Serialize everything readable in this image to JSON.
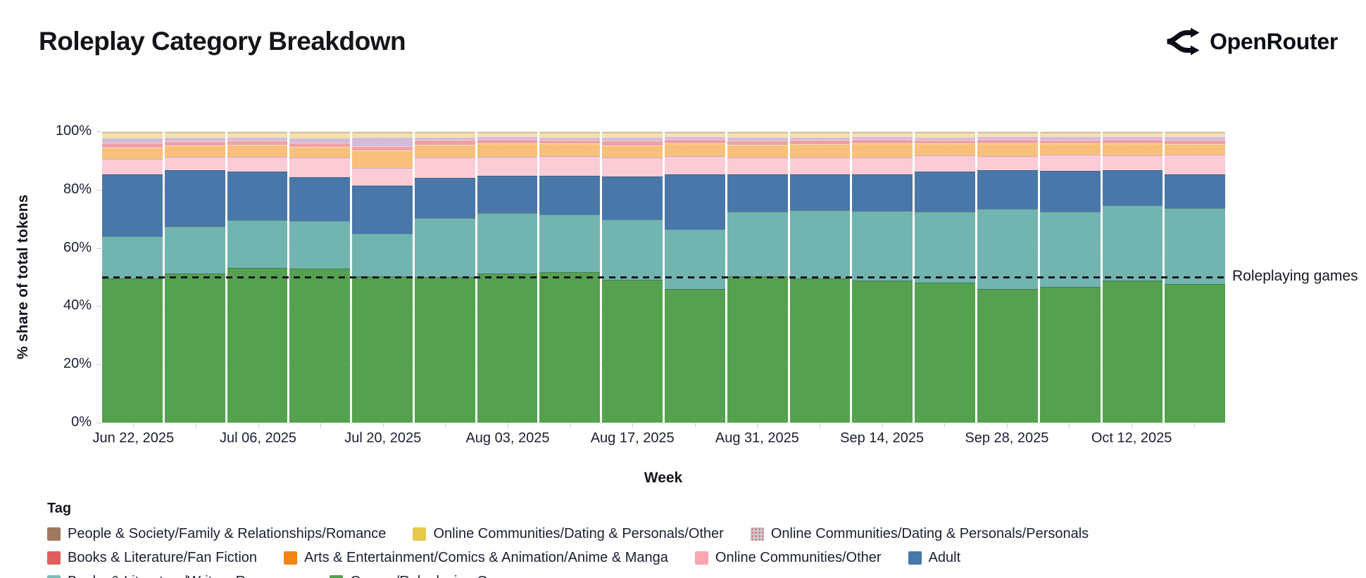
{
  "header": {
    "title": "Roleplay Category Breakdown",
    "brand": "OpenRouter"
  },
  "chart_data": {
    "type": "bar",
    "stacked": true,
    "stack_unit": "percent_share",
    "title": "Roleplay Category Breakdown",
    "xlabel": "Week",
    "ylabel": "% share of total tokens",
    "ylim": [
      0,
      100
    ],
    "ytick_values": [
      0,
      20,
      40,
      60,
      80,
      100
    ],
    "ytick_labels": [
      "0%",
      "20%",
      "40%",
      "60%",
      "80%",
      "100%"
    ],
    "grid": true,
    "legend_title": "Tag",
    "legend_position": "bottom-left",
    "annotation": {
      "y": 50,
      "label": "Roleplaying games",
      "line_style": "dashed",
      "color": "#15181e"
    },
    "weeks": [
      "Jun 22, 2025",
      "Jun 29, 2025",
      "Jul 06, 2025",
      "Jul 13, 2025",
      "Jul 20, 2025",
      "Jul 27, 2025",
      "Aug 03, 2025",
      "Aug 10, 2025",
      "Aug 17, 2025",
      "Aug 24, 2025",
      "Aug 31, 2025",
      "Sep 07, 2025",
      "Sep 14, 2025",
      "Sep 21, 2025",
      "Sep 28, 2025",
      "Oct 05, 2025",
      "Oct 12, 2025",
      "Oct 19, 2025"
    ],
    "x_tick_labels": [
      "Jun 22, 2025",
      "Jul 06, 2025",
      "Jul 20, 2025",
      "Aug 03, 2025",
      "Aug 17, 2025",
      "Aug 31, 2025",
      "Sep 14, 2025",
      "Sep 28, 2025",
      "Oct 12, 2025"
    ],
    "x_tick_every": 2,
    "series_stack_order": "bottom_to_top",
    "series": [
      {
        "name": "Games/Roleplaying Games",
        "fill": "#55a14f",
        "legend_color": "#4fa14c",
        "shade": "dark",
        "values": [
          50.4,
          52.0,
          54.0,
          53.9,
          51.1,
          50.8,
          52.2,
          52.5,
          49.9,
          46.6,
          51.1,
          50.4,
          49.6,
          48.9,
          46.6,
          47.3,
          49.6,
          48.5
        ]
      },
      {
        "name": "Books & Literature/Writers Resources",
        "fill": "#72b4b0",
        "legend_color": "#7cbcb6",
        "shade": "dark",
        "values": [
          14.6,
          16.5,
          16.5,
          16.4,
          14.7,
          20.6,
          20.8,
          20.1,
          21.0,
          20.8,
          22.4,
          23.6,
          24.2,
          24.6,
          27.9,
          26.2,
          26.3,
          26.2
        ]
      },
      {
        "name": "Adult",
        "fill": "#4a77a9",
        "legend_color": "#4a77a9",
        "shade": "dark",
        "values": [
          21.5,
          19.5,
          17.0,
          15.2,
          16.7,
          13.9,
          13.0,
          13.2,
          14.7,
          18.9,
          12.8,
          12.3,
          12.5,
          14.0,
          13.4,
          14.2,
          12.0,
          11.6
        ]
      },
      {
        "name": "Online Communities/Other",
        "fill": "#fbccd6",
        "legend_color": "#fba6b1",
        "shade": "pinkedge",
        "values": [
          5.2,
          4.4,
          4.9,
          6.5,
          5.8,
          6.9,
          6.4,
          6.9,
          6.6,
          6.4,
          5.7,
          5.9,
          5.9,
          5.4,
          4.8,
          5.4,
          5.0,
          6.8
        ]
      },
      {
        "name": "Arts & Entertainment/Comics & Animation/Anime & Manga",
        "fill": "#f8c07a",
        "legend_color": "#f28411",
        "shade": "light",
        "values": [
          3.6,
          3.6,
          3.9,
          3.5,
          5.9,
          4.0,
          4.5,
          4.0,
          3.8,
          4.2,
          4.2,
          4.3,
          4.7,
          3.8,
          4.2,
          3.6,
          4.0,
          3.4
        ]
      },
      {
        "name": "Books & Literature/Fan Fiction",
        "fill": "#efa1a7",
        "legend_color": "#e25d5d",
        "shade": "light",
        "values": [
          1.6,
          1.3,
          1.2,
          1.3,
          1.4,
          1.5,
          1.0,
          1.1,
          1.5,
          1.1,
          1.4,
          1.2,
          1.0,
          1.1,
          1.1,
          1.1,
          1.1,
          1.2
        ]
      },
      {
        "name": "Online Communities/Dating & Personals/Personals",
        "fill": "#d3bcd8",
        "legend_color": "#cfc6cd",
        "shade": "light",
        "pattern": "dots",
        "values": [
          1.4,
          1.1,
          1.0,
          1.4,
          2.9,
          0.9,
          0.8,
          0.8,
          1.0,
          0.8,
          1.0,
          0.9,
          0.8,
          0.8,
          0.8,
          0.9,
          0.8,
          1.0
        ]
      },
      {
        "name": "Online Communities/Dating & Personals/Other",
        "fill": "#f4e3a0",
        "legend_color": "#e6c94c",
        "shade": "light",
        "values": [
          1.2,
          1.1,
          1.1,
          1.2,
          1.0,
          0.9,
          0.9,
          0.9,
          0.9,
          0.8,
          0.9,
          0.9,
          0.9,
          0.9,
          0.8,
          0.8,
          0.8,
          0.9
        ]
      },
      {
        "name": "People & Society/Family & Relationships/Romance",
        "fill": "#d6bb9e",
        "legend_color": "#9e7960",
        "shade": "light",
        "values": [
          0.5,
          0.5,
          0.4,
          0.6,
          0.5,
          0.5,
          0.4,
          0.5,
          0.6,
          0.4,
          0.5,
          0.5,
          0.4,
          0.5,
          0.4,
          0.5,
          0.4,
          0.4
        ]
      }
    ],
    "legend_display_order": "reverse_of_stack"
  }
}
